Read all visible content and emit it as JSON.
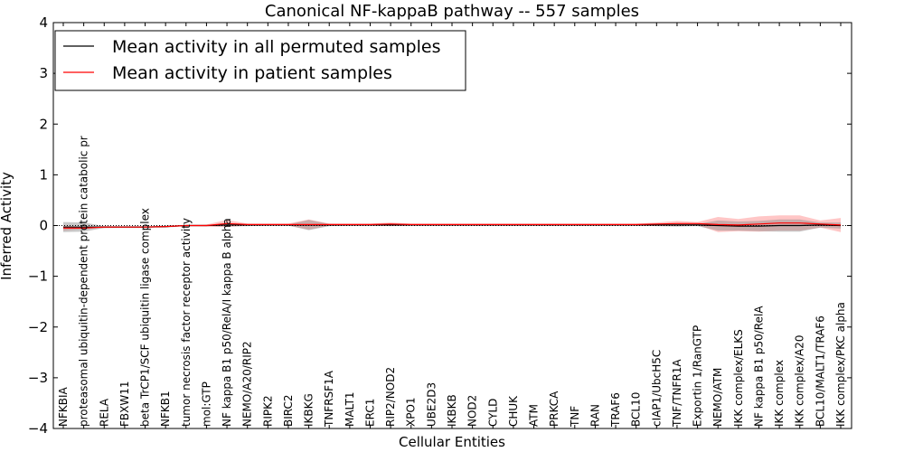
{
  "chart_data": {
    "type": "line",
    "title": "Canonical NF-kappaB pathway -- 557 samples",
    "xlabel": "Cellular Entities",
    "ylabel": "Inferred Activity",
    "ylim": [
      -4,
      4
    ],
    "yticks": [
      "−4",
      "−3",
      "−2",
      "−1",
      "0",
      "1",
      "2",
      "3",
      "4"
    ],
    "categories": [
      "NFKBIA",
      "proteasomal ubiquitin-dependent protein catabolic pr",
      "RELA",
      "FBXW11",
      "beta TrCP1/SCF ubiquitin ligase complex",
      "NFKB1",
      "tumor necrosis factor receptor activity",
      "mol:GTP",
      "NF kappa B1 p50/RelA/I kappa B alpha",
      "NEMO/A20/RIP2",
      "RIPK2",
      "BIRC2",
      "IKBKG",
      "TNFRSF1A",
      "MALT1",
      "ERC1",
      "RIP2/NOD2",
      "XPO1",
      "UBE2D3",
      "IKBKB",
      "NOD2",
      "CYLD",
      "CHUK",
      "ATM",
      "PRKCA",
      "TNF",
      "RAN",
      "TRAF6",
      "BCL10",
      "cIAP1/UbcH5C",
      "TNF/TNFR1A",
      "Exportin 1/RanGTP",
      "NEMO/ATM",
      "IKK complex/ELKS",
      "NF kappa B1 p50/RelA",
      "IKK complex",
      "IKK complex/A20",
      "BCL10/MALT1/TRAF6",
      "IKK complex/PKC alpha"
    ],
    "series": [
      {
        "name": "Mean activity in all permuted samples",
        "color": "#000000",
        "band_color": "#888888",
        "values": [
          -0.03,
          -0.03,
          -0.03,
          -0.03,
          -0.03,
          -0.02,
          0.0,
          0.0,
          0.01,
          0.01,
          0.01,
          0.01,
          0.01,
          0.01,
          0.01,
          0.01,
          0.01,
          0.01,
          0.01,
          0.01,
          0.01,
          0.01,
          0.01,
          0.01,
          0.01,
          0.01,
          0.01,
          0.01,
          0.01,
          0.01,
          0.01,
          0.01,
          0.0,
          -0.01,
          -0.01,
          0.0,
          0.0,
          0.01,
          0.0
        ],
        "band": [
          0.1,
          0.09,
          0.02,
          0.02,
          0.02,
          0.02,
          0.01,
          0.01,
          0.03,
          0.02,
          0.01,
          0.01,
          0.1,
          0.02,
          0.01,
          0.01,
          0.02,
          0.01,
          0.01,
          0.01,
          0.01,
          0.01,
          0.01,
          0.01,
          0.01,
          0.01,
          0.01,
          0.01,
          0.01,
          0.02,
          0.03,
          0.02,
          0.1,
          0.09,
          0.1,
          0.12,
          0.12,
          0.05,
          0.06
        ]
      },
      {
        "name": "Mean activity in patient samples",
        "color": "#ff0000",
        "band_color": "#ff8080",
        "values": [
          -0.05,
          -0.05,
          -0.03,
          -0.03,
          -0.03,
          -0.02,
          0.0,
          0.0,
          0.04,
          0.02,
          0.02,
          0.02,
          0.02,
          0.02,
          0.02,
          0.02,
          0.03,
          0.02,
          0.02,
          0.02,
          0.02,
          0.02,
          0.02,
          0.02,
          0.02,
          0.02,
          0.02,
          0.02,
          0.02,
          0.03,
          0.04,
          0.04,
          0.02,
          0.01,
          0.03,
          0.05,
          0.05,
          0.03,
          0.01
        ],
        "band": [
          0.05,
          0.02,
          0.02,
          0.01,
          0.01,
          0.01,
          0.01,
          0.02,
          0.07,
          0.02,
          0.02,
          0.02,
          0.1,
          0.02,
          0.02,
          0.02,
          0.03,
          0.02,
          0.02,
          0.02,
          0.02,
          0.02,
          0.02,
          0.02,
          0.02,
          0.02,
          0.02,
          0.02,
          0.02,
          0.03,
          0.05,
          0.03,
          0.15,
          0.12,
          0.15,
          0.15,
          0.15,
          0.07,
          0.14
        ]
      }
    ],
    "reference_line": 0,
    "legend_position": "top-left"
  }
}
